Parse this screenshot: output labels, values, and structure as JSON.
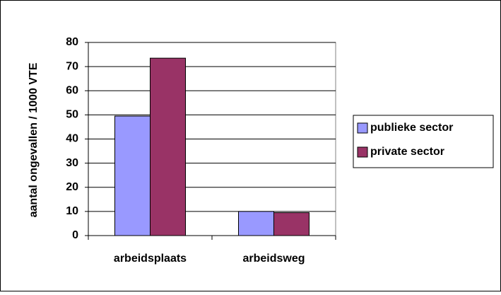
{
  "chart_data": {
    "type": "bar",
    "y_label": "aantal ongevallen / 1000 VTE",
    "categories": [
      "arbeidsplaats",
      "arbeidsweg"
    ],
    "series": [
      {
        "name": "publieke sector",
        "color": "#9999ff",
        "values": [
          49.5,
          10
        ]
      },
      {
        "name": "private sector",
        "color": "#993366",
        "values": [
          73.5,
          9.5
        ]
      }
    ],
    "ylim": [
      0,
      80
    ],
    "yticks": [
      0,
      10,
      20,
      30,
      40,
      50,
      60,
      70,
      80
    ],
    "grid": true,
    "legend": "right"
  }
}
